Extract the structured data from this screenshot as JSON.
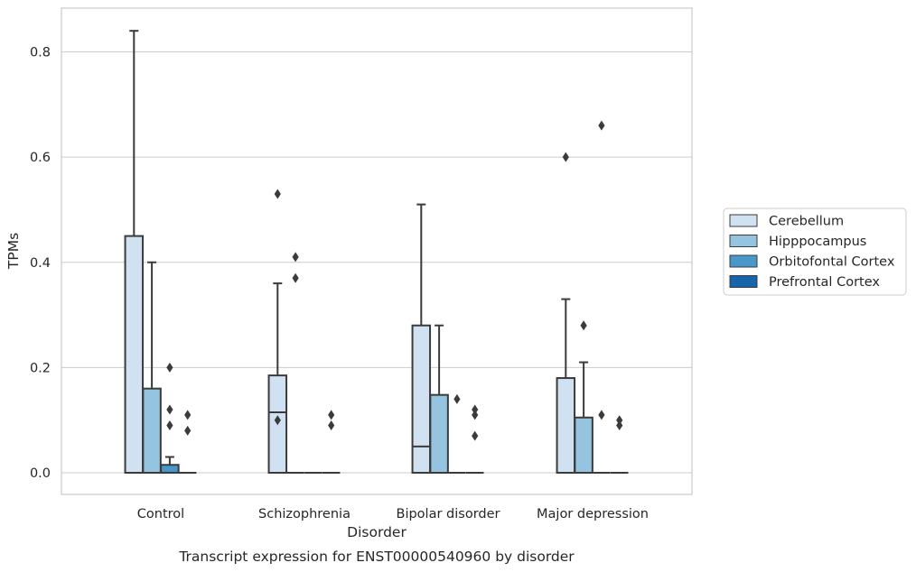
{
  "chart_data": {
    "type": "box",
    "xlabel": "Disorder",
    "ylabel": "TPMs",
    "caption": "Transcript expression for ENST00000540960 by disorder",
    "categories": [
      "Control",
      "Schizophrenia",
      "Bipolar disorder",
      "Major depression"
    ],
    "ylim": [
      -0.04,
      0.885
    ],
    "yticks": [
      0.0,
      0.2,
      0.4,
      0.6,
      0.8
    ],
    "ytick_labels": [
      "0.0",
      "0.2",
      "0.4",
      "0.6",
      "0.8"
    ],
    "grid": "horizontal",
    "legend_position": "outside-right",
    "series": [
      {
        "name": "Cerebellum",
        "color": "#d0e1f2",
        "boxes": [
          {
            "q1": 0.0,
            "median": 0.0,
            "q3": 0.45,
            "whisker_low": 0.0,
            "whisker_high": 0.84,
            "outliers": []
          },
          {
            "q1": 0.0,
            "median": 0.115,
            "q3": 0.185,
            "whisker_low": 0.0,
            "whisker_high": 0.36,
            "outliers": [
              0.53,
              0.1
            ]
          },
          {
            "q1": 0.0,
            "median": 0.05,
            "q3": 0.28,
            "whisker_low": 0.0,
            "whisker_high": 0.51,
            "outliers": []
          },
          {
            "q1": 0.0,
            "median": 0.0,
            "q3": 0.18,
            "whisker_low": 0.0,
            "whisker_high": 0.33,
            "outliers": [
              0.6
            ]
          }
        ]
      },
      {
        "name": "Hipppocampus",
        "color": "#94c4df",
        "boxes": [
          {
            "q1": 0.0,
            "median": 0.0,
            "q3": 0.16,
            "whisker_low": 0.0,
            "whisker_high": 0.4,
            "outliers": []
          },
          {
            "q1": 0.0,
            "median": 0.0,
            "q3": 0.0,
            "whisker_low": 0.0,
            "whisker_high": 0.0,
            "outliers": [
              0.41,
              0.37
            ]
          },
          {
            "q1": 0.0,
            "median": 0.0,
            "q3": 0.148,
            "whisker_low": 0.0,
            "whisker_high": 0.28,
            "outliers": []
          },
          {
            "q1": 0.0,
            "median": 0.0,
            "q3": 0.105,
            "whisker_low": 0.0,
            "whisker_high": 0.21,
            "outliers": [
              0.28
            ]
          }
        ]
      },
      {
        "name": "Orbitofontal Cortex",
        "color": "#4a98c9",
        "boxes": [
          {
            "q1": 0.0,
            "median": 0.0,
            "q3": 0.015,
            "whisker_low": 0.0,
            "whisker_high": 0.03,
            "outliers": [
              0.2,
              0.12,
              0.09
            ]
          },
          {
            "q1": 0.0,
            "median": 0.0,
            "q3": 0.0,
            "whisker_low": 0.0,
            "whisker_high": 0.0,
            "outliers": []
          },
          {
            "q1": 0.0,
            "median": 0.0,
            "q3": 0.0,
            "whisker_low": 0.0,
            "whisker_high": 0.0,
            "outliers": [
              0.14
            ]
          },
          {
            "q1": 0.0,
            "median": 0.0,
            "q3": 0.0,
            "whisker_low": 0.0,
            "whisker_high": 0.0,
            "outliers": [
              0.66,
              0.11
            ]
          }
        ]
      },
      {
        "name": "Prefrontal Cortex",
        "color": "#1764ab",
        "boxes": [
          {
            "q1": 0.0,
            "median": 0.0,
            "q3": 0.0,
            "whisker_low": 0.0,
            "whisker_high": 0.0,
            "outliers": [
              0.11,
              0.08
            ]
          },
          {
            "q1": 0.0,
            "median": 0.0,
            "q3": 0.0,
            "whisker_low": 0.0,
            "whisker_high": 0.0,
            "outliers": [
              0.11,
              0.09
            ]
          },
          {
            "q1": 0.0,
            "median": 0.0,
            "q3": 0.0,
            "whisker_low": 0.0,
            "whisker_high": 0.0,
            "outliers": [
              0.12,
              0.11,
              0.07
            ]
          },
          {
            "q1": 0.0,
            "median": 0.0,
            "q3": 0.0,
            "whisker_low": 0.0,
            "whisker_high": 0.0,
            "outliers": [
              0.1,
              0.09
            ]
          }
        ]
      }
    ]
  }
}
